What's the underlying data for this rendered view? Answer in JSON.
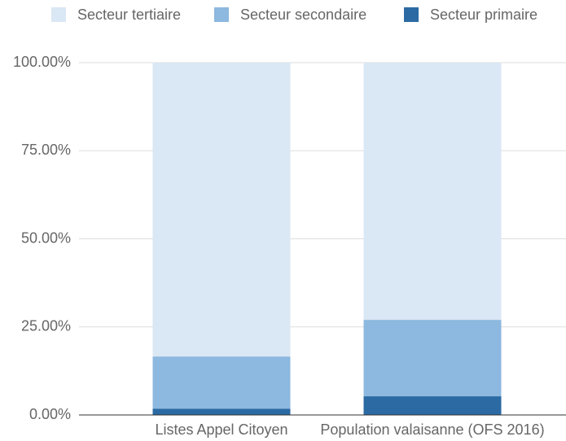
{
  "chart_data": {
    "type": "stacked_bar",
    "categories": [
      "Listes Appel Citoyen",
      "Population valaisanne (OFS 2016)"
    ],
    "series": [
      {
        "name": "Secteur tertiaire",
        "color": "#dae7f4",
        "values": [
          83.4,
          73.0
        ]
      },
      {
        "name": "Secteur secondaire",
        "color": "#8db8df",
        "values": [
          14.8,
          21.7
        ]
      },
      {
        "name": "Secteur primaire",
        "color": "#2b6aa3",
        "values": [
          1.8,
          5.3
        ]
      }
    ],
    "ylim": [
      0,
      100
    ],
    "yticks": [
      {
        "value": 0,
        "label": "0.00%"
      },
      {
        "value": 25,
        "label": "25.00%"
      },
      {
        "value": 50,
        "label": "50.00%"
      },
      {
        "value": 75,
        "label": "75.00%"
      },
      {
        "value": 100,
        "label": "100.00%"
      }
    ],
    "grid": true,
    "legend": "top"
  }
}
